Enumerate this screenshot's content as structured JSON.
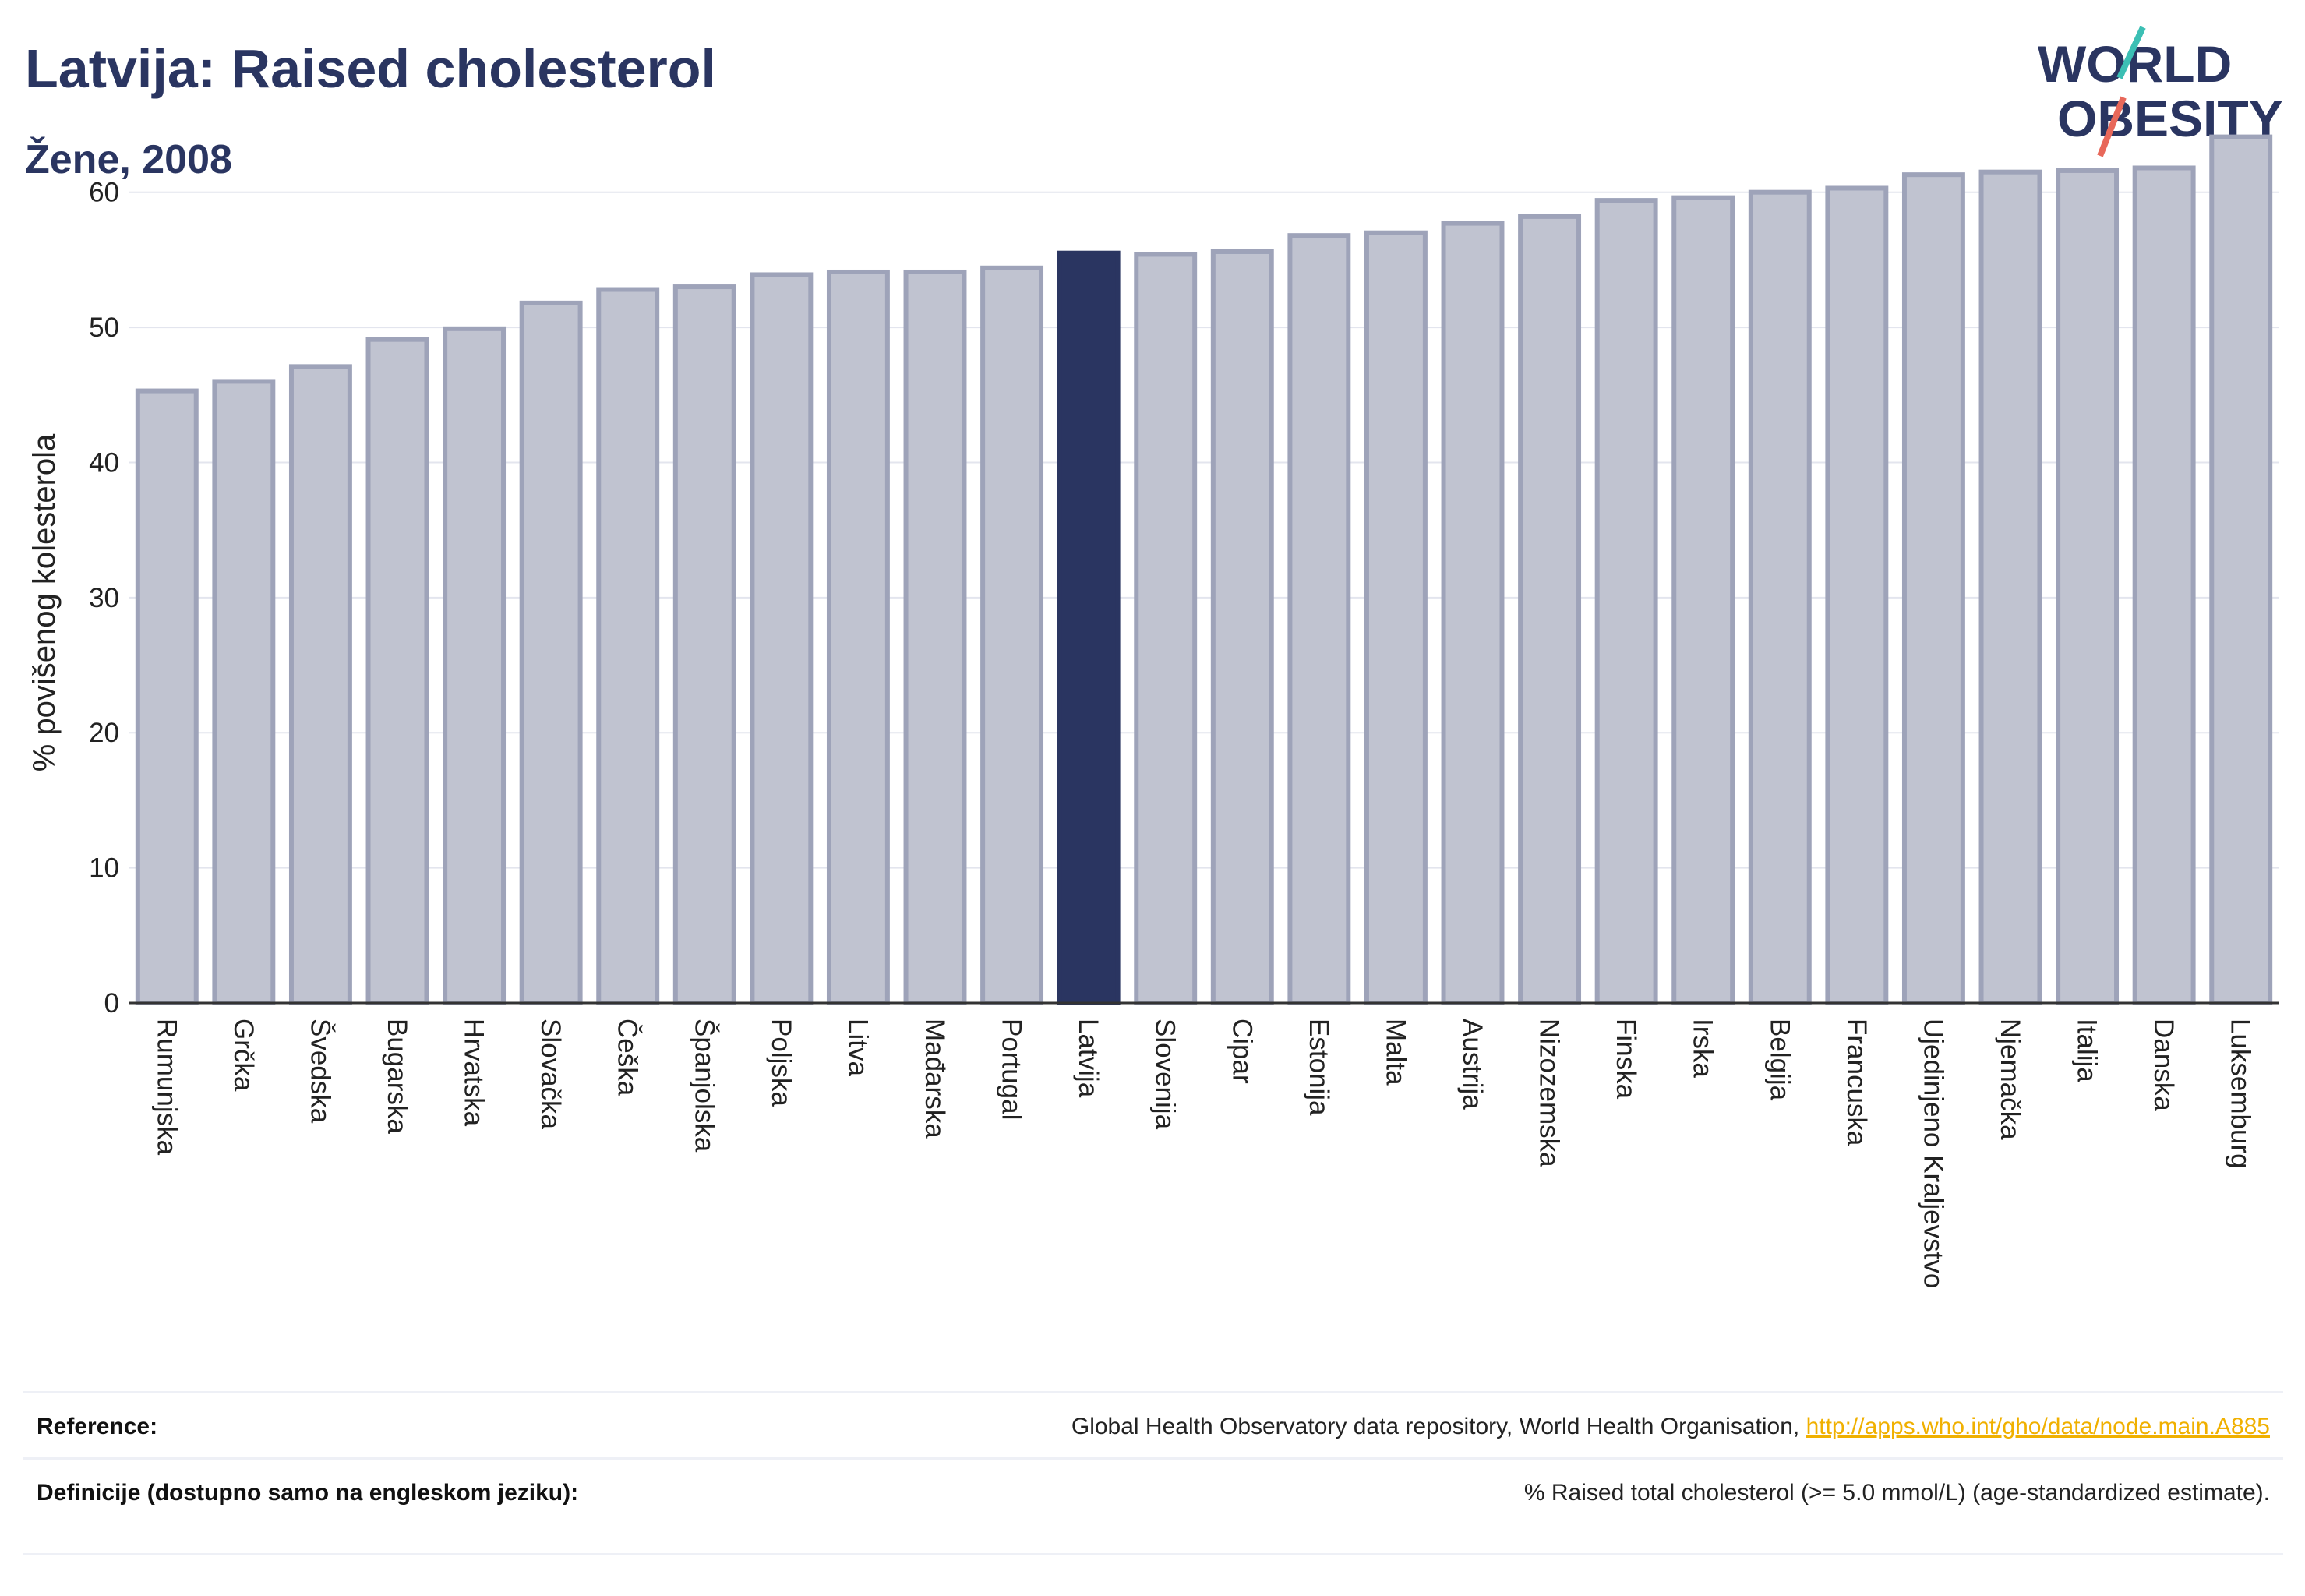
{
  "header": {
    "title": "Latvija: Raised cholesterol",
    "subtitle": "Žene, 2008"
  },
  "logo": {
    "line1": "WORLD",
    "line2": "OBESITY"
  },
  "chart_data": {
    "type": "bar",
    "ylabel": "% povišenog kolesterola",
    "ylim": [
      0,
      65
    ],
    "yticks": [
      0,
      10,
      20,
      30,
      40,
      50,
      60
    ],
    "grid": true,
    "highlight": "Latvija",
    "colors": {
      "bar": "#c0c3d0",
      "bar_edge": "#9ea3b9",
      "highlight": "#2a3561"
    },
    "categories": [
      "Rumunjska",
      "Grčka",
      "Švedska",
      "Bugarska",
      "Hrvatska",
      "Slovačka",
      "Češka",
      "Španjolska",
      "Poljska",
      "Litva",
      "Mađarska",
      "Portugal",
      "Latvija",
      "Slovenija",
      "Cipar",
      "Estonija",
      "Malta",
      "Austrija",
      "Nizozemska",
      "Finska",
      "Irska",
      "Belgija",
      "Francuska",
      "Ujedinjeno Kraljevstvo",
      "Njemačka",
      "Italija",
      "Danska",
      "Luksemburg"
    ],
    "values": [
      45.3,
      46.0,
      47.1,
      49.1,
      49.9,
      51.8,
      52.8,
      53.0,
      53.9,
      54.1,
      54.1,
      54.4,
      55.5,
      55.4,
      55.6,
      56.8,
      57.0,
      57.7,
      58.2,
      59.4,
      59.6,
      60.0,
      60.3,
      61.3,
      61.5,
      61.6,
      61.8,
      64.1
    ]
  },
  "footer": {
    "reference_label": "Reference:",
    "reference_text": "Global Health Observatory data repository, World Health Organisation,",
    "reference_link": "http://apps.who.int/gho/data/node.main.A885",
    "definition_label": "Definicije (dostupno samo na engleskom jeziku):",
    "definition_text": "% Raised total cholesterol (>= 5.0 mmol/L) (age-standardized estimate)."
  }
}
